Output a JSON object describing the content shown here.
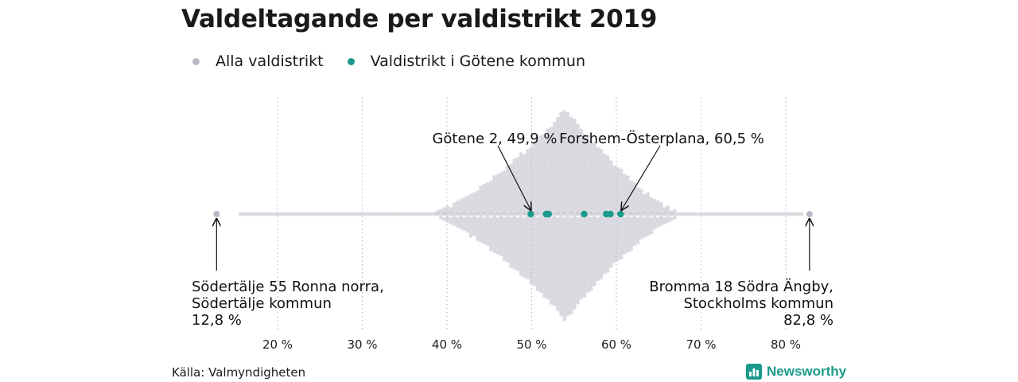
{
  "title": "Valdeltagande per valdistrikt 2019",
  "legend": [
    {
      "label": "Alla valdistrikt",
      "color": "#b9b8c6"
    },
    {
      "label": "Valdistrikt i Götene kommun",
      "color": "#1a9a8a"
    }
  ],
  "source": "Källa: Valmyndigheten",
  "brand": {
    "name": "Newsworthy",
    "icon": "bar-chart-icon",
    "color": "#1a9a8a"
  },
  "chart_data": {
    "type": "scatter",
    "subtype": "beeswarm",
    "xlim": [
      10,
      87
    ],
    "grid": "vertical-dotted",
    "x_ticks": [
      {
        "value": 20,
        "label": "20 %"
      },
      {
        "value": 30,
        "label": "30 %"
      },
      {
        "value": 40,
        "label": "40 %"
      },
      {
        "value": 50,
        "label": "50 %"
      },
      {
        "value": 60,
        "label": "60 %"
      },
      {
        "value": 70,
        "label": "70 %"
      },
      {
        "value": 80,
        "label": "80 %"
      }
    ],
    "series": [
      {
        "name": "Alla valdistrikt",
        "color": "#b9b8c6",
        "distribution": {
          "min": 12.8,
          "max": 82.8,
          "mode": 54,
          "left_spread": 18,
          "right_spread": 15
        }
      },
      {
        "name": "Valdistrikt i Götene kommun",
        "color": "#1a9a8a",
        "values": [
          49.9,
          51.7,
          52.0,
          56.2,
          58.8,
          59.3,
          60.5
        ]
      }
    ],
    "annotations": [
      {
        "id": "min",
        "value": 12.8,
        "lines": [
          "Södertälje 55 Ronna norra,",
          "Södertälje kommun",
          "12,8 %"
        ],
        "align": "left",
        "position": "below"
      },
      {
        "id": "max",
        "value": 82.8,
        "lines": [
          "Bromma 18 Södra Ängby,",
          "Stockholms kommun",
          "82,8 %"
        ],
        "align": "right",
        "position": "below"
      },
      {
        "id": "gotene2",
        "value": 49.9,
        "lines": [
          "Götene 2, 49,9 %"
        ],
        "align": "center",
        "position": "above"
      },
      {
        "id": "forshem",
        "value": 60.5,
        "lines": [
          "Forshem-Österplana, 60,5 %"
        ],
        "align": "center",
        "position": "above"
      }
    ]
  }
}
